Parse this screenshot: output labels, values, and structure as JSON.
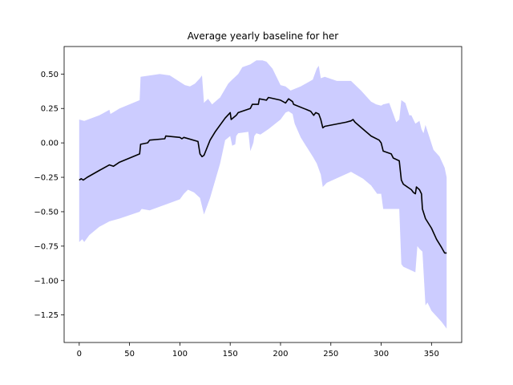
{
  "chart_data": {
    "type": "line",
    "title": "Average yearly baseline for her",
    "xlabel": "",
    "ylabel": "",
    "xlim": [
      -15,
      380
    ],
    "ylim": [
      -1.45,
      0.7
    ],
    "x_ticks": [
      0,
      50,
      100,
      150,
      200,
      250,
      300,
      350
    ],
    "x_tick_labels": [
      "0",
      "50",
      "100",
      "150",
      "200",
      "250",
      "300",
      "350"
    ],
    "y_ticks": [
      0.5,
      0.25,
      0.0,
      -0.25,
      -0.5,
      -0.75,
      -1.0,
      -1.25
    ],
    "y_tick_labels": [
      "0.50",
      "0.25",
      "0.00",
      "−0.25",
      "−0.50",
      "−0.75",
      "−1.00",
      "−1.25"
    ],
    "grid": false,
    "legend": "none",
    "colors": {
      "line": "#000000",
      "band_fill": "#0000ff",
      "band_opacity": 0.2
    },
    "series": [
      {
        "values": [
          [
            0,
            -0.27
          ],
          [
            2,
            -0.26
          ],
          [
            4,
            -0.27
          ],
          [
            8,
            -0.25
          ],
          [
            20,
            -0.2
          ],
          [
            30,
            -0.16
          ],
          [
            34,
            -0.17
          ],
          [
            40,
            -0.14
          ],
          [
            60,
            -0.08
          ],
          [
            61,
            -0.01
          ],
          [
            68,
            0.0
          ],
          [
            70,
            0.02
          ],
          [
            85,
            0.03
          ],
          [
            86,
            0.05
          ],
          [
            100,
            0.04
          ],
          [
            102,
            0.03
          ],
          [
            104,
            0.04
          ],
          [
            118,
            0.01
          ],
          [
            120,
            -0.08
          ],
          [
            122,
            -0.1
          ],
          [
            124,
            -0.09
          ],
          [
            130,
            0.02
          ],
          [
            135,
            0.08
          ],
          [
            145,
            0.18
          ],
          [
            150,
            0.22
          ],
          [
            151,
            0.17
          ],
          [
            156,
            0.2
          ],
          [
            158,
            0.22
          ],
          [
            170,
            0.25
          ],
          [
            172,
            0.28
          ],
          [
            178,
            0.28
          ],
          [
            179,
            0.32
          ],
          [
            186,
            0.31
          ],
          [
            188,
            0.33
          ],
          [
            200,
            0.31
          ],
          [
            205,
            0.29
          ],
          [
            208,
            0.32
          ],
          [
            212,
            0.3
          ],
          [
            213,
            0.28
          ],
          [
            230,
            0.23
          ],
          [
            233,
            0.2
          ],
          [
            235,
            0.22
          ],
          [
            238,
            0.21
          ],
          [
            240,
            0.17
          ],
          [
            242,
            0.11
          ],
          [
            244,
            0.12
          ],
          [
            265,
            0.15
          ],
          [
            270,
            0.16
          ],
          [
            272,
            0.17
          ],
          [
            274,
            0.15
          ],
          [
            282,
            0.1
          ],
          [
            290,
            0.05
          ],
          [
            298,
            0.02
          ],
          [
            300,
            0.0
          ],
          [
            302,
            -0.06
          ],
          [
            310,
            -0.08
          ],
          [
            312,
            -0.11
          ],
          [
            318,
            -0.13
          ],
          [
            320,
            -0.27
          ],
          [
            322,
            -0.3
          ],
          [
            330,
            -0.34
          ],
          [
            332,
            -0.36
          ],
          [
            334,
            -0.37
          ],
          [
            335,
            -0.32
          ],
          [
            338,
            -0.34
          ],
          [
            340,
            -0.37
          ],
          [
            341,
            -0.48
          ],
          [
            344,
            -0.55
          ],
          [
            350,
            -0.62
          ],
          [
            355,
            -0.7
          ],
          [
            360,
            -0.76
          ],
          [
            363,
            -0.8
          ],
          [
            365,
            -0.8
          ]
        ],
        "band_upper": [
          [
            0,
            0.17
          ],
          [
            5,
            0.16
          ],
          [
            20,
            0.2
          ],
          [
            30,
            0.24
          ],
          [
            31,
            0.21
          ],
          [
            40,
            0.25
          ],
          [
            60,
            0.31
          ],
          [
            61,
            0.48
          ],
          [
            80,
            0.5
          ],
          [
            90,
            0.49
          ],
          [
            105,
            0.42
          ],
          [
            110,
            0.41
          ],
          [
            115,
            0.43
          ],
          [
            120,
            0.47
          ],
          [
            122,
            0.49
          ],
          [
            124,
            0.29
          ],
          [
            125,
            0.3
          ],
          [
            128,
            0.32
          ],
          [
            132,
            0.28
          ],
          [
            140,
            0.33
          ],
          [
            148,
            0.43
          ],
          [
            152,
            0.46
          ],
          [
            158,
            0.5
          ],
          [
            162,
            0.55
          ],
          [
            170,
            0.57
          ],
          [
            176,
            0.6
          ],
          [
            182,
            0.6
          ],
          [
            186,
            0.59
          ],
          [
            192,
            0.54
          ],
          [
            200,
            0.42
          ],
          [
            205,
            0.41
          ],
          [
            210,
            0.38
          ],
          [
            220,
            0.41
          ],
          [
            232,
            0.46
          ],
          [
            236,
            0.54
          ],
          [
            238,
            0.56
          ],
          [
            240,
            0.47
          ],
          [
            244,
            0.48
          ],
          [
            256,
            0.45
          ],
          [
            270,
            0.45
          ],
          [
            280,
            0.38
          ],
          [
            290,
            0.3
          ],
          [
            295,
            0.28
          ],
          [
            300,
            0.27
          ],
          [
            302,
            0.28
          ],
          [
            308,
            0.29
          ],
          [
            315,
            0.15
          ],
          [
            318,
            0.17
          ],
          [
            320,
            0.31
          ],
          [
            324,
            0.29
          ],
          [
            328,
            0.2
          ],
          [
            330,
            0.2
          ],
          [
            334,
            0.14
          ],
          [
            338,
            0.16
          ],
          [
            340,
            0.1
          ],
          [
            342,
            0.07
          ],
          [
            344,
            0.13
          ],
          [
            348,
            0.04
          ],
          [
            352,
            -0.05
          ],
          [
            358,
            -0.1
          ],
          [
            363,
            -0.18
          ],
          [
            365,
            -0.25
          ]
        ],
        "band_lower": [
          [
            0,
            -0.72
          ],
          [
            3,
            -0.7
          ],
          [
            5,
            -0.72
          ],
          [
            10,
            -0.67
          ],
          [
            20,
            -0.61
          ],
          [
            30,
            -0.57
          ],
          [
            40,
            -0.55
          ],
          [
            60,
            -0.5
          ],
          [
            62,
            -0.48
          ],
          [
            70,
            -0.49
          ],
          [
            85,
            -0.45
          ],
          [
            100,
            -0.41
          ],
          [
            104,
            -0.37
          ],
          [
            108,
            -0.34
          ],
          [
            114,
            -0.36
          ],
          [
            120,
            -0.4
          ],
          [
            124,
            -0.52
          ],
          [
            130,
            -0.4
          ],
          [
            140,
            -0.15
          ],
          [
            145,
            0.02
          ],
          [
            150,
            0.05
          ],
          [
            152,
            -0.02
          ],
          [
            155,
            -0.01
          ],
          [
            156,
            0.05
          ],
          [
            158,
            0.07
          ],
          [
            168,
            0.08
          ],
          [
            170,
            -0.06
          ],
          [
            173,
            0.0
          ],
          [
            174,
            0.05
          ],
          [
            176,
            0.07
          ],
          [
            180,
            0.06
          ],
          [
            188,
            0.1
          ],
          [
            200,
            0.17
          ],
          [
            205,
            0.22
          ],
          [
            208,
            0.23
          ],
          [
            212,
            0.21
          ],
          [
            214,
            0.14
          ],
          [
            220,
            0.04
          ],
          [
            226,
            -0.03
          ],
          [
            232,
            -0.1
          ],
          [
            236,
            -0.15
          ],
          [
            240,
            -0.23
          ],
          [
            242,
            -0.32
          ],
          [
            246,
            -0.29
          ],
          [
            270,
            -0.21
          ],
          [
            282,
            -0.26
          ],
          [
            290,
            -0.31
          ],
          [
            296,
            -0.37
          ],
          [
            300,
            -0.37
          ],
          [
            302,
            -0.48
          ],
          [
            318,
            -0.48
          ],
          [
            320,
            -0.88
          ],
          [
            322,
            -0.9
          ],
          [
            334,
            -0.94
          ],
          [
            336,
            -0.75
          ],
          [
            338,
            -0.77
          ],
          [
            341,
            -0.79
          ],
          [
            344,
            -1.18
          ],
          [
            346,
            -1.16
          ],
          [
            350,
            -1.22
          ],
          [
            355,
            -1.26
          ],
          [
            360,
            -1.3
          ],
          [
            365,
            -1.35
          ]
        ]
      }
    ]
  }
}
